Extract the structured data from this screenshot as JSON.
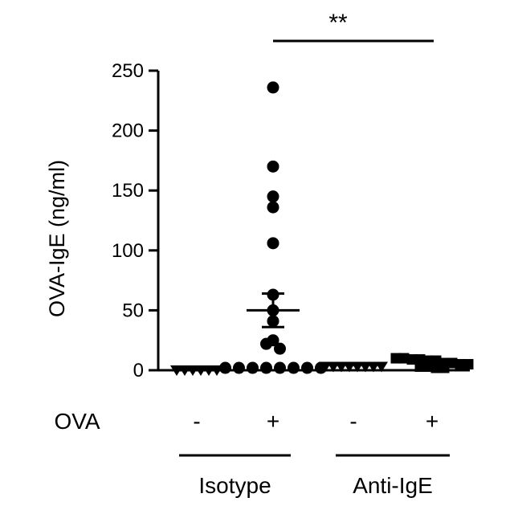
{
  "chart_data": {
    "type": "scatter",
    "title": "",
    "ylabel": "OVA-IgE (ng/ml)",
    "ylim": [
      0,
      250
    ],
    "yticks": [
      "0",
      "50",
      "100",
      "150",
      "200",
      "250"
    ],
    "row_label": "OVA",
    "ova_values": [
      "-",
      "+",
      "-",
      "+"
    ],
    "groups": [
      "Isotype",
      "Anti-IgE"
    ],
    "significance": "**",
    "colors": {
      "points": "#000000",
      "axis": "#000000"
    },
    "series": [
      {
        "marker": "triangle-down",
        "values": [
          0,
          0,
          0,
          0,
          0,
          0
        ]
      },
      {
        "marker": "circle",
        "mean": 50,
        "sem": 14,
        "values": [
          236,
          170,
          145,
          136,
          106,
          63,
          50,
          41,
          25,
          22,
          18,
          2,
          2,
          2,
          2,
          2,
          2,
          2,
          2
        ]
      },
      {
        "marker": "triangle-down",
        "values": [
          3,
          3,
          3,
          3,
          3,
          3,
          3,
          3
        ]
      },
      {
        "marker": "square",
        "values": [
          10,
          10,
          9,
          9,
          8,
          8,
          6,
          6,
          5,
          5,
          3,
          3,
          2,
          2
        ]
      }
    ]
  }
}
